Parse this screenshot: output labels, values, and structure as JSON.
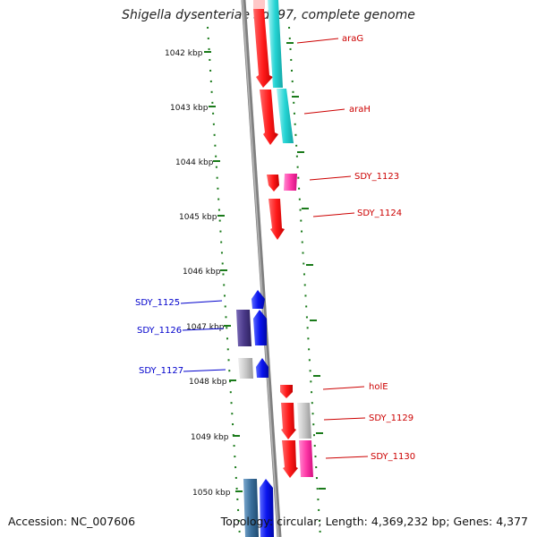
{
  "title": "Shigella dysenteriae Sd197, complete genome",
  "footer": {
    "accession": "Accession: NC_007606",
    "topology": "Topology: circular; Length: 4,369,232 bp; Genes: 4,377"
  },
  "ticks": [
    "1042 kbp",
    "1043 kbp",
    "1044 kbp",
    "1045 kbp",
    "1046 kbp",
    "1047 kbp",
    "1048 kbp",
    "1049 kbp",
    "1050 kbp"
  ],
  "colors": {
    "forward_label": "#cc0000",
    "reverse_label": "#0000cc",
    "tick_marks": "#1a7a1a",
    "backbone": "#808080"
  },
  "genes": [
    {
      "name": "araG",
      "strand": "forward",
      "color": "#ff1a1a"
    },
    {
      "name": "araH",
      "strand": "forward",
      "color": "#ff1a1a"
    },
    {
      "name": "SDY_1123",
      "strand": "forward",
      "color": "#e00000"
    },
    {
      "name": "SDY_1124",
      "strand": "forward",
      "color": "#ff1a1a"
    },
    {
      "name": "SDY_1125",
      "strand": "reverse",
      "color": "#0000ee"
    },
    {
      "name": "SDY_1126",
      "strand": "reverse",
      "color": "#4b3a8a"
    },
    {
      "name": "SDY_1127",
      "strand": "reverse",
      "color": "#1020ee"
    },
    {
      "name": "holE",
      "strand": "forward",
      "color": "#ff1a1a"
    },
    {
      "name": "SDY_1129",
      "strand": "forward",
      "color": "#ff1a1a"
    },
    {
      "name": "SDY_1130",
      "strand": "forward",
      "color": "#ff1a1a"
    }
  ]
}
